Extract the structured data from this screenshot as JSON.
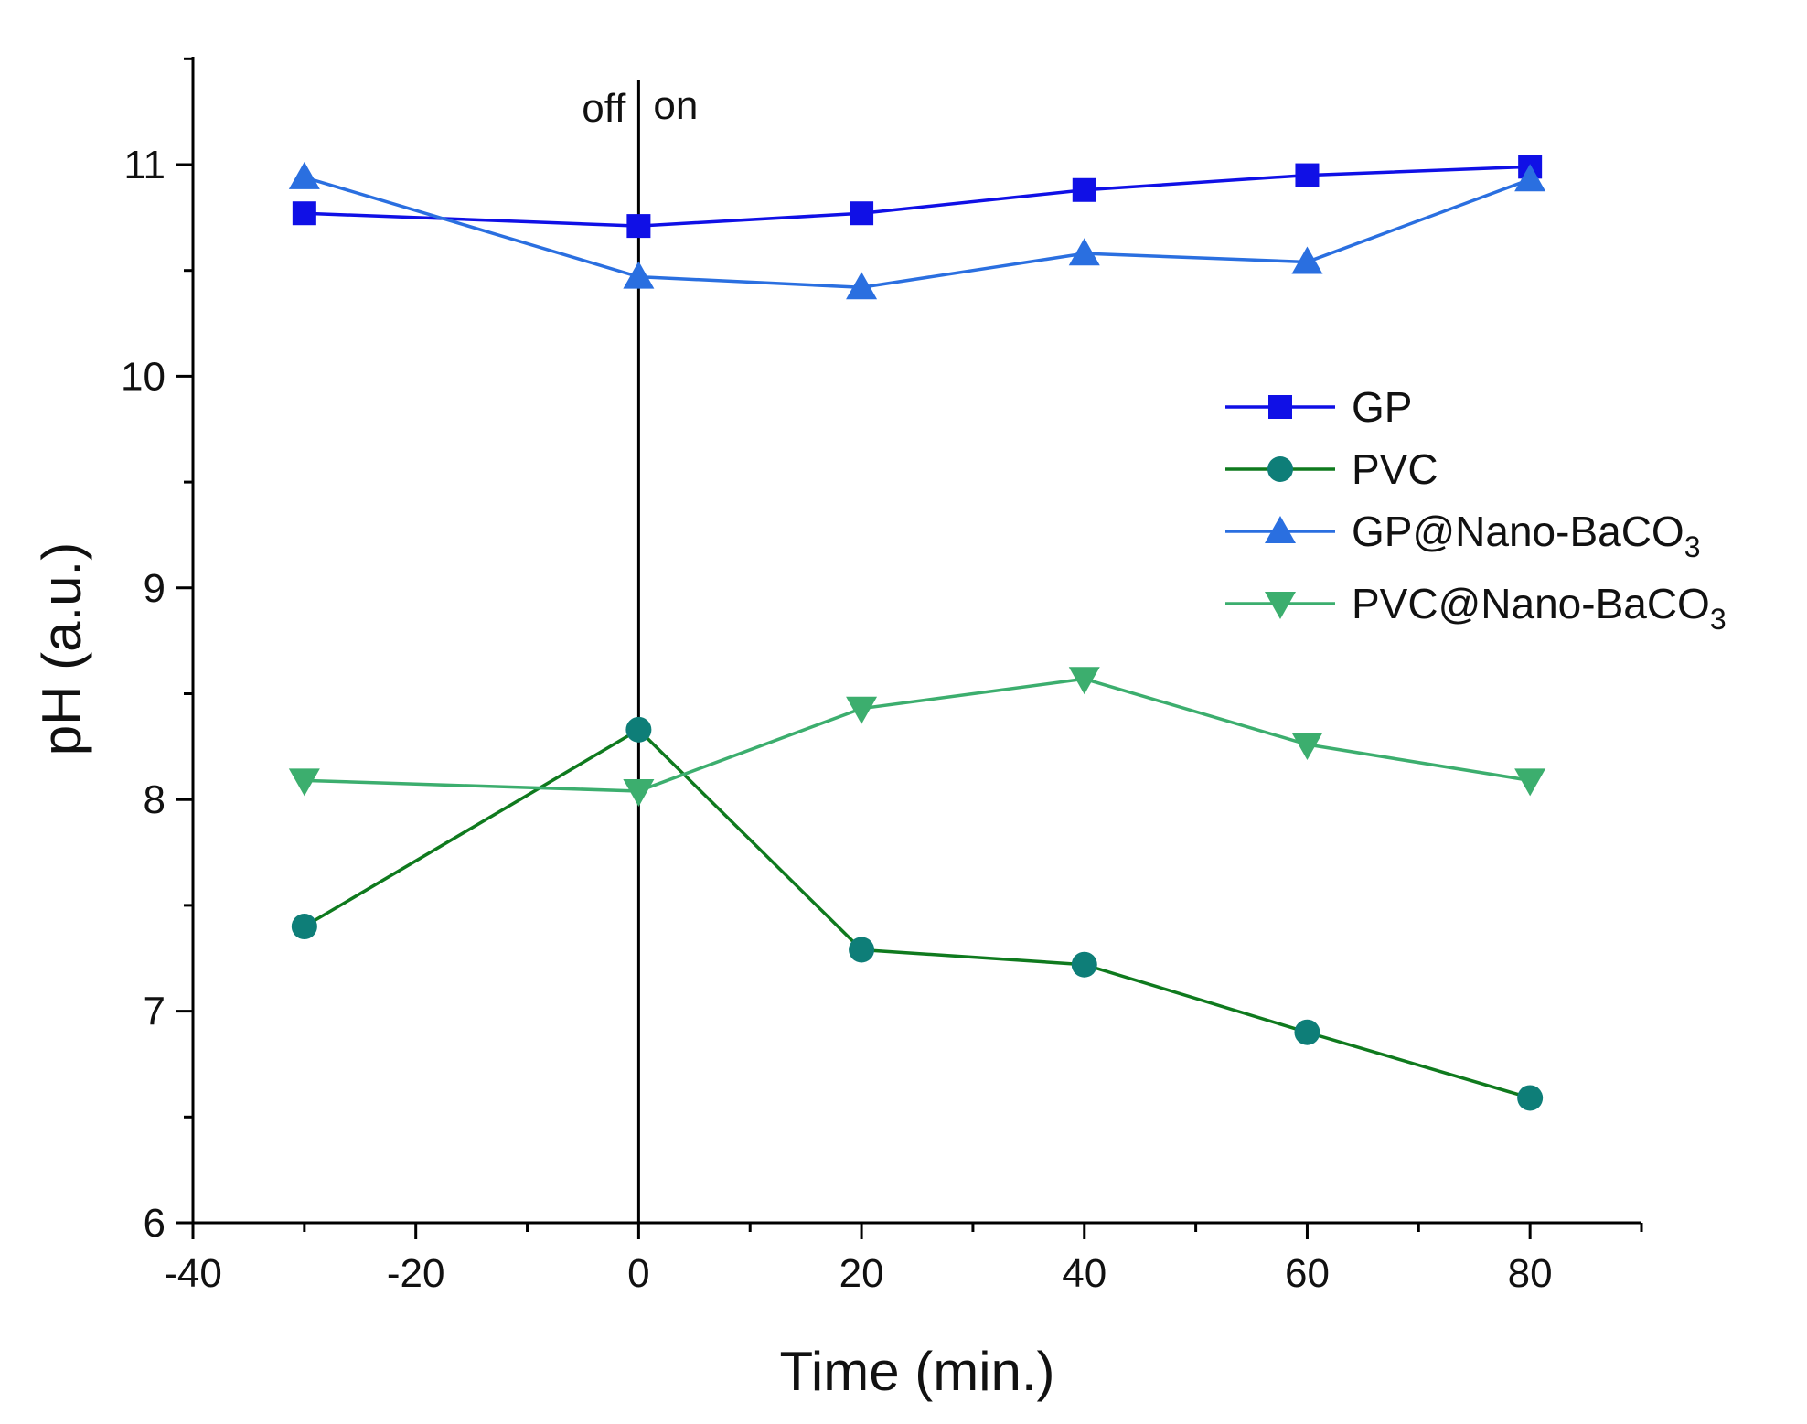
{
  "chart_data": {
    "type": "line",
    "xlabel": "Time (min.)",
    "ylabel": "pH (a.u.)",
    "xlim": [
      -40,
      90
    ],
    "ylim": [
      6,
      11.5
    ],
    "x_ticks": [
      -40,
      -20,
      0,
      20,
      40,
      60,
      80
    ],
    "x_tick_labels": [
      "-40",
      "-20",
      "0",
      "20",
      "40",
      "60",
      "80"
    ],
    "x_minor_ticks": [
      -30,
      -10,
      10,
      30,
      50,
      70,
      90
    ],
    "y_ticks": [
      6,
      7,
      8,
      9,
      10,
      11
    ],
    "y_tick_labels": [
      "6",
      "7",
      "8",
      "9",
      "10",
      "11"
    ],
    "y_minor_ticks": [
      6.5,
      7.5,
      8.5,
      9.5,
      10.5,
      11.5
    ],
    "grid": false,
    "legend_position": "right",
    "vline": {
      "x": 0,
      "left_label": "off",
      "right_label": "on"
    },
    "x": [
      -30,
      0,
      20,
      40,
      60,
      80
    ],
    "series": [
      {
        "name": "GP",
        "name_sub": "",
        "color": "#1010e6",
        "marker": "square",
        "values": [
          10.77,
          10.71,
          10.77,
          10.88,
          10.95,
          10.99
        ]
      },
      {
        "name": "PVC",
        "name_sub": "",
        "color": "#0f7a1e",
        "marker_color": "#0e7e78",
        "marker": "circle",
        "values": [
          7.4,
          8.33,
          7.29,
          7.22,
          6.9,
          6.59
        ]
      },
      {
        "name": "GP@Nano-BaCO",
        "name_sub": "3",
        "color": "#2a6fe0",
        "marker": "triangle-up",
        "values": [
          10.94,
          10.47,
          10.42,
          10.58,
          10.54,
          10.93
        ]
      },
      {
        "name": "PVC@Nano-BaCO",
        "name_sub": "3",
        "color": "#3cae6e",
        "marker": "triangle-down",
        "values": [
          8.09,
          8.04,
          8.43,
          8.57,
          8.26,
          8.09
        ]
      }
    ]
  }
}
